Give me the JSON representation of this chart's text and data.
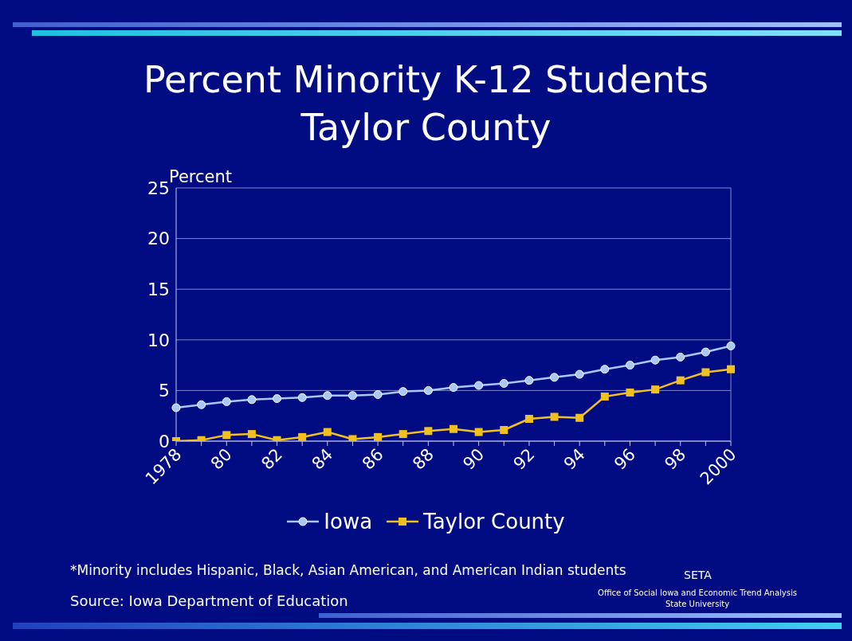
{
  "chart_data": {
    "type": "line",
    "title": "Percent Minority K-12 Students\nTaylor County",
    "ylabel": "Percent",
    "categories": [
      "1978",
      null,
      "80",
      null,
      "82",
      null,
      "84",
      null,
      "86",
      null,
      "88",
      null,
      "90",
      null,
      "92",
      null,
      "94",
      null,
      "96",
      null,
      "98",
      null,
      "2000"
    ],
    "series": [
      {
        "name": "Iowa",
        "color": "#a8c8f8",
        "values": [
          3.3,
          3.6,
          3.9,
          4.1,
          4.2,
          4.3,
          4.5,
          4.5,
          4.6,
          4.9,
          5.0,
          5.3,
          5.5,
          5.7,
          6.0,
          6.3,
          6.6,
          7.1,
          7.5,
          8.0,
          8.3,
          8.8,
          9.4
        ],
        "marker": "circle"
      },
      {
        "name": "Taylor County",
        "color": "#f0c020",
        "values": [
          0,
          0.1,
          0.6,
          0.7,
          0.1,
          0.4,
          0.9,
          0.2,
          0.4,
          0.7,
          1.0,
          1.2,
          0.9,
          1.1,
          2.2,
          2.4,
          2.3,
          4.4,
          4.8,
          5.1,
          6.0,
          6.8,
          7.1
        ],
        "marker": "square"
      }
    ],
    "ylim": [
      0,
      25
    ],
    "yticks": [
      0,
      5,
      10,
      15,
      20,
      25
    ],
    "grid": "y",
    "legend": "bottom",
    "line_style": "solid",
    "annotations": [
      "*Minority includes Hispanic, Black, Asian American, and American Indian students",
      "Source:  Iowa Department of Education",
      "SETA",
      "Office of Social Iowa and Economic Trend Analysis",
      "State University"
    ]
  }
}
